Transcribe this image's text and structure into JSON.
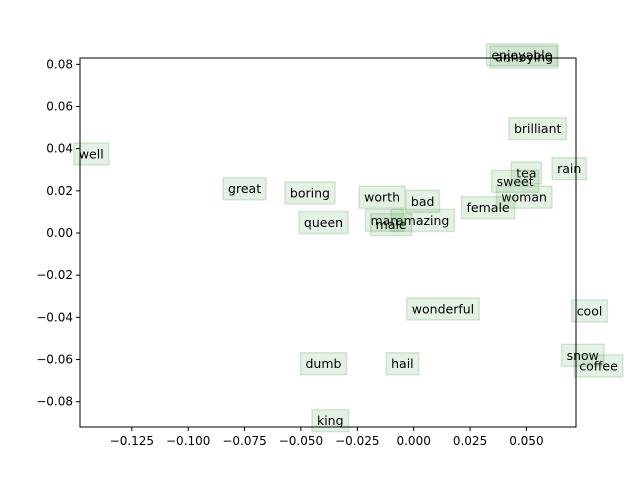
{
  "chart_data": {
    "type": "scatter",
    "title": "",
    "xlabel": "",
    "ylabel": "",
    "xlim": [
      -0.148,
      0.072
    ],
    "ylim": [
      -0.092,
      0.083
    ],
    "grid": false,
    "xticks": [
      -0.125,
      -0.1,
      -0.075,
      -0.05,
      -0.025,
      0.0,
      0.025,
      0.05
    ],
    "xtick_labels": [
      "−0.125",
      "−0.100",
      "−0.075",
      "−0.050",
      "−0.025",
      "0.000",
      "0.025",
      "0.050"
    ],
    "yticks": [
      -0.08,
      -0.06,
      -0.04,
      -0.02,
      0.0,
      0.02,
      0.04,
      0.06,
      0.08
    ],
    "ytick_labels": [
      "−0.08",
      "−0.06",
      "−0.04",
      "−0.02",
      "0.00",
      "0.02",
      "0.04",
      "0.06",
      "0.08"
    ],
    "points": [
      {
        "label": "enjoyable",
        "x": 0.048,
        "y": 0.0845
      },
      {
        "label": "annoying",
        "x": 0.049,
        "y": 0.0835
      },
      {
        "label": "brilliant",
        "x": 0.055,
        "y": 0.0495
      },
      {
        "label": "well",
        "x": -0.143,
        "y": 0.0375
      },
      {
        "label": "rain",
        "x": 0.069,
        "y": 0.0305
      },
      {
        "label": "tea",
        "x": 0.05,
        "y": 0.0285
      },
      {
        "label": "sweet",
        "x": 0.045,
        "y": 0.0245
      },
      {
        "label": "woman",
        "x": 0.049,
        "y": 0.017
      },
      {
        "label": "great",
        "x": -0.075,
        "y": 0.021
      },
      {
        "label": "boring",
        "x": -0.046,
        "y": 0.019
      },
      {
        "label": "worth",
        "x": -0.014,
        "y": 0.017
      },
      {
        "label": "bad",
        "x": 0.004,
        "y": 0.015
      },
      {
        "label": "female",
        "x": 0.033,
        "y": 0.012
      },
      {
        "label": "man",
        "x": -0.013,
        "y": 0.006
      },
      {
        "label": "amazing",
        "x": 0.004,
        "y": 0.006
      },
      {
        "label": "male",
        "x": -0.01,
        "y": 0.004
      },
      {
        "label": "queen",
        "x": -0.04,
        "y": 0.005
      },
      {
        "label": "wonderful",
        "x": 0.013,
        "y": -0.036
      },
      {
        "label": "cool",
        "x": 0.078,
        "y": -0.037
      },
      {
        "label": "snow",
        "x": 0.075,
        "y": -0.058
      },
      {
        "label": "coffee",
        "x": 0.082,
        "y": -0.063
      },
      {
        "label": "dumb",
        "x": -0.04,
        "y": -0.062
      },
      {
        "label": "hail",
        "x": -0.005,
        "y": -0.062
      },
      {
        "label": "king",
        "x": -0.037,
        "y": -0.089
      }
    ]
  }
}
